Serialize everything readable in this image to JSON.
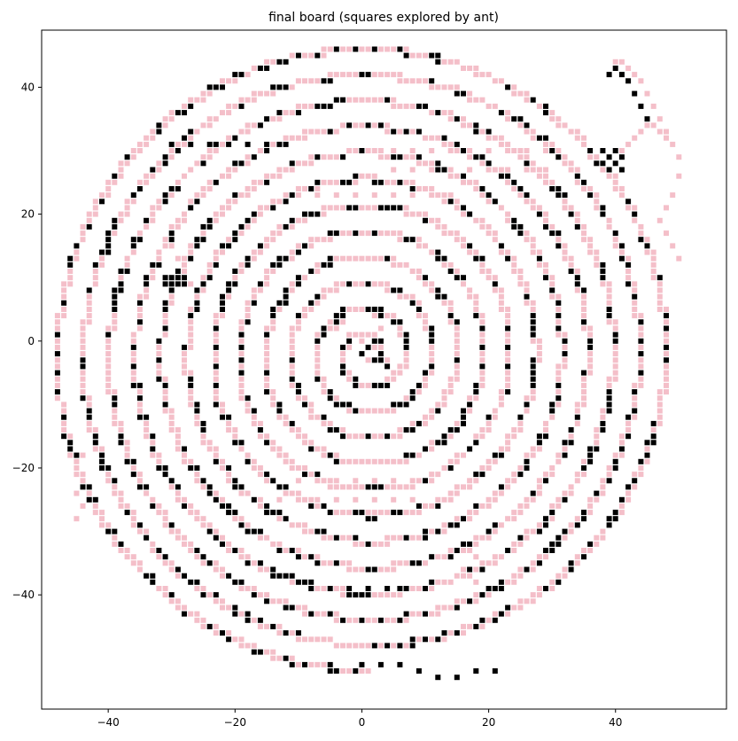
{
  "chart_data": {
    "type": "scatter",
    "title": "final board (squares explored by ant)",
    "xlabel": "",
    "ylabel": "",
    "xlim": [
      -50.5,
      57.5
    ],
    "ylim": [
      -58,
      49
    ],
    "x_ticks": [
      -40,
      -20,
      0,
      20,
      40
    ],
    "y_ticks": [
      -40,
      -20,
      0,
      20,
      40
    ],
    "x_tick_labels": [
      "−40",
      "−20",
      "0",
      "20",
      "40"
    ],
    "y_tick_labels": [
      "−40",
      "−20",
      "0",
      "20",
      "40"
    ],
    "grid": false,
    "legend": "none",
    "marker": "square",
    "colors": {
      "pink": "#f4bfc9",
      "black": "#000000"
    },
    "spiral": {
      "center": [
        1,
        -2
      ],
      "start_radius": 1,
      "end_radius": 50,
      "turns": 12,
      "angle_start_deg": -90
    },
    "series": [
      {
        "color": "pink",
        "points": [
          [
            0,
            0
          ],
          [
            1,
            1
          ],
          [
            -1,
            1
          ],
          [
            2,
            -1
          ],
          [
            -2,
            -1
          ],
          [
            3,
            2
          ],
          [
            -3,
            3
          ],
          [
            4,
            -3
          ],
          [
            2,
            4
          ],
          [
            -4,
            2
          ],
          [
            40,
            44
          ],
          [
            41,
            44
          ],
          [
            42,
            43
          ],
          [
            43,
            42
          ],
          [
            44,
            41
          ],
          [
            45,
            39
          ],
          [
            46,
            37
          ],
          [
            47,
            35
          ],
          [
            48,
            33
          ],
          [
            49,
            31
          ],
          [
            50,
            29
          ],
          [
            50,
            26
          ],
          [
            49,
            23
          ],
          [
            48,
            21
          ],
          [
            47,
            19
          ],
          [
            48,
            17
          ],
          [
            49,
            15
          ],
          [
            50,
            13
          ],
          [
            41,
            30
          ],
          [
            42,
            31
          ],
          [
            43,
            32
          ],
          [
            44,
            33
          ],
          [
            45,
            34
          ],
          [
            46,
            34
          ],
          [
            47,
            33
          ],
          [
            48,
            32
          ],
          [
            5,
            27
          ],
          [
            8,
            27
          ],
          [
            11,
            27
          ],
          [
            14,
            27
          ],
          [
            17,
            27
          ],
          [
            20,
            27
          ],
          [
            23,
            27
          ],
          [
            26,
            27
          ],
          [
            29,
            27
          ],
          [
            5,
            30
          ],
          [
            8,
            30
          ],
          [
            11,
            30
          ],
          [
            14,
            30
          ],
          [
            17,
            30
          ],
          [
            20,
            30
          ],
          [
            23,
            30
          ],
          [
            26,
            30
          ],
          [
            29,
            30
          ],
          [
            -10,
            23
          ],
          [
            -7,
            23
          ],
          [
            -4,
            23
          ],
          [
            -1,
            23
          ],
          [
            2,
            23
          ],
          [
            5,
            23
          ],
          [
            8,
            23
          ],
          [
            11,
            23
          ],
          [
            14,
            23
          ],
          [
            -10,
            -22
          ],
          [
            -7,
            -22
          ],
          [
            -4,
            -22
          ],
          [
            -1,
            -22
          ],
          [
            2,
            -22
          ],
          [
            5,
            -22
          ],
          [
            8,
            -22
          ],
          [
            11,
            -22
          ],
          [
            -13,
            -25
          ],
          [
            -10,
            -25
          ],
          [
            -7,
            -25
          ],
          [
            -4,
            -25
          ],
          [
            -1,
            -25
          ],
          [
            2,
            -25
          ],
          [
            5,
            -25
          ],
          [
            8,
            -25
          ],
          [
            16,
            -36
          ],
          [
            17,
            -37
          ],
          [
            18,
            -38
          ],
          [
            19,
            -35
          ],
          [
            18,
            -34
          ],
          [
            17,
            -33
          ],
          [
            -44,
            -18
          ],
          [
            -45,
            -20
          ],
          [
            -44,
            -22
          ],
          [
            -45,
            -24
          ],
          [
            -44,
            -26
          ],
          [
            -45,
            -28
          ],
          [
            -30,
            15
          ],
          [
            -29,
            13
          ],
          [
            -28,
            11
          ],
          [
            -27,
            9
          ],
          [
            -26,
            7
          ]
        ]
      },
      {
        "color": "black",
        "points": [
          [
            41,
            29
          ],
          [
            40,
            28
          ],
          [
            39,
            29
          ],
          [
            38,
            28
          ],
          [
            39,
            27
          ],
          [
            40,
            30
          ],
          [
            41,
            27
          ],
          [
            38,
            30
          ],
          [
            40,
            43
          ],
          [
            39,
            42
          ],
          [
            41,
            42
          ],
          [
            42,
            41
          ],
          [
            43,
            39
          ],
          [
            44,
            37
          ],
          [
            45,
            35
          ],
          [
            -1,
            -6
          ],
          [
            0,
            -2
          ],
          [
            1,
            -1
          ],
          [
            2,
            -3
          ],
          [
            3,
            -2
          ],
          [
            4,
            -4
          ],
          [
            -8,
            -39
          ],
          [
            -5,
            -39
          ],
          [
            -2,
            -39
          ],
          [
            1,
            -39
          ],
          [
            4,
            -39
          ],
          [
            7,
            -39
          ],
          [
            10,
            -39
          ],
          [
            0,
            -51
          ],
          [
            3,
            -51
          ],
          [
            6,
            -51
          ],
          [
            9,
            -52
          ],
          [
            12,
            -53
          ],
          [
            15,
            -53
          ],
          [
            18,
            -52
          ],
          [
            21,
            -52
          ],
          [
            -30,
            31
          ],
          [
            -27,
            31
          ],
          [
            -24,
            31
          ],
          [
            -21,
            31
          ],
          [
            -18,
            31
          ],
          [
            -15,
            31
          ],
          [
            -31,
            9
          ],
          [
            -30,
            9
          ],
          [
            -29,
            9
          ],
          [
            -28,
            9
          ],
          [
            -31,
            10
          ],
          [
            -30,
            10
          ],
          [
            -29,
            10
          ],
          [
            -28,
            10
          ]
        ]
      }
    ]
  }
}
